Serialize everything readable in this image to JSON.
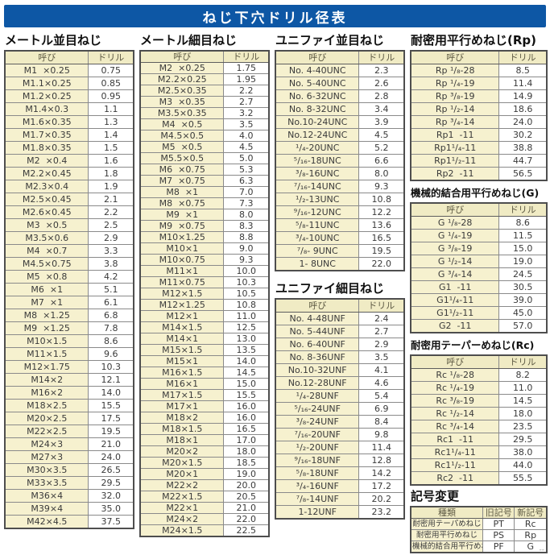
{
  "title": "ねじ下穴ドリル径表",
  "col_headers": {
    "name": "呼び",
    "drill": "ドリル"
  },
  "sections": {
    "metric_coarse": {
      "title": "メートル並目ねじ",
      "rows": [
        [
          "M1  ×0.25",
          "0.75"
        ],
        [
          "M1.1×0.25",
          "0.85"
        ],
        [
          "M1.2×0.25",
          "0.95"
        ],
        [
          "M1.4×0.3",
          "1.1"
        ],
        [
          "M1.6×0.35",
          "1.3"
        ],
        [
          "M1.7×0.35",
          "1.4"
        ],
        [
          "M1.8×0.35",
          "1.5"
        ],
        [
          "M2  ×0.4",
          "1.6"
        ],
        [
          "M2.2×0.45",
          "1.8"
        ],
        [
          "M2.3×0.4",
          "1.9"
        ],
        [
          "M2.5×0.45",
          "2.1"
        ],
        [
          "M2.6×0.45",
          "2.2"
        ],
        [
          "M3  ×0.5",
          "2.5"
        ],
        [
          "M3.5×0.6",
          "2.9"
        ],
        [
          "M4  ×0.7",
          "3.3"
        ],
        [
          "M4.5×0.75",
          "3.8"
        ],
        [
          "M5  ×0.8",
          "4.2"
        ],
        [
          "M6  ×1",
          "5.1"
        ],
        [
          "M7  ×1",
          "6.1"
        ],
        [
          "M8  ×1.25",
          "6.8"
        ],
        [
          "M9  ×1.25",
          "7.8"
        ],
        [
          "M10×1.5",
          "8.6"
        ],
        [
          "M11×1.5",
          "9.6"
        ],
        [
          "M12×1.75",
          "10.3"
        ],
        [
          "M14×2",
          "12.1"
        ],
        [
          "M16×2",
          "14.0"
        ],
        [
          "M18×2.5",
          "15.5"
        ],
        [
          "M20×2.5",
          "17.5"
        ],
        [
          "M22×2.5",
          "19.5"
        ],
        [
          "M24×3",
          "21.0"
        ],
        [
          "M27×3",
          "24.0"
        ],
        [
          "M30×3.5",
          "26.5"
        ],
        [
          "M33×3.5",
          "29.5"
        ],
        [
          "M36×4",
          "32.0"
        ],
        [
          "M39×4",
          "35.0"
        ],
        [
          "M42×4.5",
          "37.5"
        ]
      ]
    },
    "metric_fine": {
      "title": "メートル細目ねじ",
      "rows": [
        [
          "M2  ×0.25",
          "1.75"
        ],
        [
          "M2.2×0.25",
          "1.95"
        ],
        [
          "M2.5×0.35",
          "2.2"
        ],
        [
          "M3  ×0.35",
          "2.7"
        ],
        [
          "M3.5×0.35",
          "3.2"
        ],
        [
          "M4  ×0.5",
          "3.5"
        ],
        [
          "M4.5×0.5",
          "4.0"
        ],
        [
          "M5  ×0.5",
          "4.5"
        ],
        [
          "M5.5×0.5",
          "5.0"
        ],
        [
          "M6  ×0.75",
          "5.3"
        ],
        [
          "M7  ×0.75",
          "6.3"
        ],
        [
          "M8  ×1",
          "7.0"
        ],
        [
          "M8  ×0.75",
          "7.3"
        ],
        [
          "M9  ×1",
          "8.0"
        ],
        [
          "M9  ×0.75",
          "8.3"
        ],
        [
          "M10×1.25",
          "8.8"
        ],
        [
          "M10×1",
          "9.0"
        ],
        [
          "M10×0.75",
          "9.3"
        ],
        [
          "M11×1",
          "10.0"
        ],
        [
          "M11×0.75",
          "10.3"
        ],
        [
          "M12×1.5",
          "10.5"
        ],
        [
          "M12×1.25",
          "10.8"
        ],
        [
          "M12×1",
          "11.0"
        ],
        [
          "M14×1.5",
          "12.5"
        ],
        [
          "M14×1",
          "13.0"
        ],
        [
          "M15×1.5",
          "13.5"
        ],
        [
          "M15×1",
          "14.0"
        ],
        [
          "M16×1.5",
          "14.5"
        ],
        [
          "M16×1",
          "15.0"
        ],
        [
          "M17×1.5",
          "15.5"
        ],
        [
          "M17×1",
          "16.0"
        ],
        [
          "M18×2",
          "16.0"
        ],
        [
          "M18×1.5",
          "16.5"
        ],
        [
          "M18×1",
          "17.0"
        ],
        [
          "M20×2",
          "18.0"
        ],
        [
          "M20×1.5",
          "18.5"
        ],
        [
          "M20×1",
          "19.0"
        ],
        [
          "M22×2",
          "20.0"
        ],
        [
          "M22×1.5",
          "20.5"
        ],
        [
          "M22×1",
          "21.0"
        ],
        [
          "M24×2",
          "22.0"
        ],
        [
          "M24×1.5",
          "22.5"
        ]
      ]
    },
    "unified_coarse": {
      "title": "ユニファイ並目ねじ",
      "rows": [
        [
          "No. 4-40UNC",
          "2.3"
        ],
        [
          "No. 5-40UNC",
          "2.6"
        ],
        [
          "No. 6-32UNC",
          "2.8"
        ],
        [
          "No. 8-32UNC",
          "3.4"
        ],
        [
          "No.10-24UNC",
          "3.9"
        ],
        [
          "No.12-24UNC",
          "4.5"
        ],
        [
          "¹/₄-20UNC",
          "5.2"
        ],
        [
          "⁵/₁₆-18UNC",
          "6.6"
        ],
        [
          "³/₈-16UNC",
          "8.0"
        ],
        [
          "⁷/₁₆-14UNC",
          "9.3"
        ],
        [
          "¹/₂-13UNC",
          "10.8"
        ],
        [
          "⁹/₁₆-12UNC",
          "12.2"
        ],
        [
          "⁵/₈-11UNC",
          "13.6"
        ],
        [
          "³/₄-10UNC",
          "16.5"
        ],
        [
          "⁷/₈- 9UNC",
          "19.5"
        ],
        [
          "1- 8UNC",
          "22.0"
        ]
      ]
    },
    "unified_fine": {
      "title": "ユニファイ細目ねじ",
      "rows": [
        [
          "No. 4-48UNF",
          "2.4"
        ],
        [
          "No. 5-44UNF",
          "2.7"
        ],
        [
          "No. 6-40UNF",
          "2.9"
        ],
        [
          "No. 8-36UNF",
          "3.5"
        ],
        [
          "No.10-32UNF",
          "4.1"
        ],
        [
          "No.12-28UNF",
          "4.6"
        ],
        [
          "¹/₄-28UNF",
          "5.4"
        ],
        [
          "⁵/₁₆-24UNF",
          "6.9"
        ],
        [
          "³/₈-24UNF",
          "8.4"
        ],
        [
          "⁷/₁₆-20UNF",
          "9.8"
        ],
        [
          "¹/₂-20UNF",
          "11.4"
        ],
        [
          "⁹/₁₆-18UNF",
          "12.8"
        ],
        [
          "⁵/₈-18UNF",
          "14.2"
        ],
        [
          "³/₄-16UNF",
          "17.2"
        ],
        [
          "⁷/₈-14UNF",
          "20.2"
        ],
        [
          "1-12UNF",
          "23.2"
        ]
      ]
    },
    "rp": {
      "title": "耐密用平行めねじ(Rp)",
      "rows": [
        [
          "Rp ¹/₈-28",
          "8.5"
        ],
        [
          "Rp ¹/₄-19",
          "11.4"
        ],
        [
          "Rp ³/₈-19",
          "14.9"
        ],
        [
          "Rp ¹/₂-14",
          "18.6"
        ],
        [
          "Rp ³/₄-14",
          "24.0"
        ],
        [
          "Rp1  -11",
          "30.2"
        ],
        [
          "Rp1¹/₄-11",
          "38.8"
        ],
        [
          "Rp1¹/₂-11",
          "44.7"
        ],
        [
          "Rp2  -11",
          "56.5"
        ]
      ]
    },
    "g": {
      "title": "機械的結合用平行めねじ(G)",
      "rows": [
        [
          "G ¹/₈-28",
          "8.6"
        ],
        [
          "G ¹/₄-19",
          "11.5"
        ],
        [
          "G ³/₈-19",
          "15.0"
        ],
        [
          "G ¹/₂-14",
          "19.0"
        ],
        [
          "G ³/₄-14",
          "24.5"
        ],
        [
          "G1  -11",
          "30.5"
        ],
        [
          "G1¹/₄-11",
          "39.0"
        ],
        [
          "G1¹/₂-11",
          "45.0"
        ],
        [
          "G2  -11",
          "57.0"
        ]
      ]
    },
    "rc": {
      "title": "耐密用テーパーめねじ(Rc)",
      "rows": [
        [
          "Rc ¹/₈-28",
          "8.2"
        ],
        [
          "Rc ¹/₄-19",
          "11.0"
        ],
        [
          "Rc ³/₈-19",
          "14.5"
        ],
        [
          "Rc ¹/₂-14",
          "18.0"
        ],
        [
          "Rc ³/₄-14",
          "23.5"
        ],
        [
          "Rc1  -11",
          "29.5"
        ],
        [
          "Rc1¹/₄-11",
          "38.0"
        ],
        [
          "Rc1¹/₂-11",
          "44.0"
        ],
        [
          "Rc2  -11",
          "55.5"
        ]
      ]
    },
    "symbol_change": {
      "title": "記号変更",
      "headers": [
        "種類",
        "旧記号",
        "新記号"
      ],
      "rows": [
        [
          "耐密用テーパめねじ",
          "PT",
          "Rc"
        ],
        [
          "耐密用平行めねじ",
          "PS",
          "Rp"
        ],
        [
          "機械的結合用平行めねじ",
          "PF",
          "G"
        ]
      ]
    }
  },
  "footer": {
    "corner_mark": "--"
  },
  "colors": {
    "title_bar": "#0d57a5",
    "header_bg": "#f0ebc4",
    "name_cell_bg": "#f6f1cf",
    "border": "#8a8a8a",
    "text": "#3a3a3a"
  }
}
